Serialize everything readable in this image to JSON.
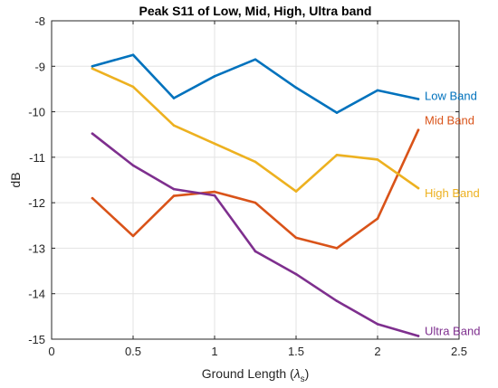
{
  "chart_data": {
    "type": "line",
    "title": "Peak S11 of Low, Mid, High, Ultra band",
    "xlabel": "Ground Length",
    "xlabel_symbol": "λ",
    "xlabel_subscript": "s",
    "ylabel": "dB",
    "xlim": [
      0,
      2.5
    ],
    "ylim": [
      -15,
      -8
    ],
    "grid": true,
    "xticks": [
      "0",
      "0.5",
      "1",
      "1.5",
      "2",
      "2.5"
    ],
    "yticks": [
      "-15",
      "-14",
      "-13",
      "-12",
      "-11",
      "-10",
      "-9",
      "-8"
    ],
    "x": [
      0.25,
      0.5,
      0.75,
      1.0,
      1.25,
      1.5,
      1.75,
      2.0,
      2.25
    ],
    "series": [
      {
        "name": "Low Band",
        "color": "#0072BD",
        "values": [
          -9.0,
          -8.75,
          -9.7,
          -9.22,
          -8.85,
          -9.47,
          -10.02,
          -9.53,
          -9.72
        ]
      },
      {
        "name": "Mid Band",
        "color": "#D95319",
        "values": [
          -11.9,
          -12.73,
          -11.85,
          -11.76,
          -12.0,
          -12.77,
          -13.0,
          -12.35,
          -10.4
        ]
      },
      {
        "name": "High Band",
        "color": "#EDB120",
        "values": [
          -9.05,
          -9.45,
          -10.3,
          -10.7,
          -11.1,
          -11.75,
          -10.95,
          -11.05,
          -11.68
        ]
      },
      {
        "name": "Ultra Band",
        "color": "#7E2F8E",
        "values": [
          -10.48,
          -11.18,
          -11.7,
          -11.84,
          -13.07,
          -13.57,
          -14.16,
          -14.67,
          -14.93
        ]
      }
    ]
  }
}
